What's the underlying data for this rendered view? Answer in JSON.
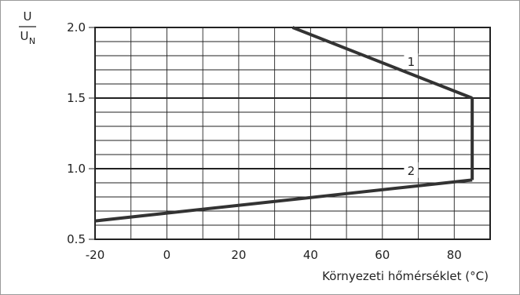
{
  "chart_data": {
    "type": "line",
    "ylabel_numerator": "U",
    "ylabel_denominator": "U",
    "ylabel_denominator_sub": "N",
    "xlabel": "Környezeti hőmérséklet (°C)",
    "xlim": [
      -20,
      90
    ],
    "ylim": [
      0.5,
      2.0
    ],
    "x_ticks": [
      -20,
      0,
      20,
      40,
      60,
      80
    ],
    "x_tick_labels": [
      "-20",
      "0",
      "20",
      "40",
      "60",
      "80"
    ],
    "y_ticks": [
      0.5,
      1.0,
      1.5,
      2.0
    ],
    "y_tick_labels": [
      "0.5",
      "1.0",
      "1.5",
      "2.0"
    ],
    "grid": true,
    "series": [
      {
        "name": "1",
        "x": [
          35,
          85
        ],
        "y": [
          2.0,
          1.5
        ]
      },
      {
        "name": "2",
        "x": [
          -20,
          85
        ],
        "y": [
          0.63,
          0.92
        ]
      }
    ],
    "connector": {
      "x": [
        85,
        85
      ],
      "y": [
        1.5,
        0.92
      ]
    }
  },
  "colors": {
    "line": "#333333",
    "grid": "#222222",
    "background": "#ffffff"
  }
}
